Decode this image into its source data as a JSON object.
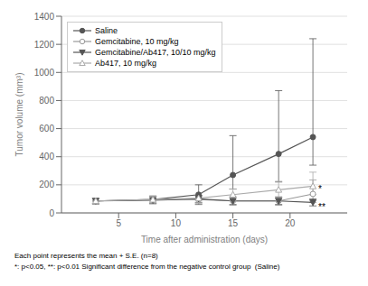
{
  "chart_data": {
    "type": "line",
    "xlabel": "Time after administration (days)",
    "ylabel": "Tumor volume (mm³)",
    "x": [
      3,
      8,
      12,
      15,
      19,
      22
    ],
    "series": [
      {
        "name": "Saline",
        "color": "#555555",
        "marker": "circle",
        "values": [
          85,
          95,
          130,
          270,
          420,
          540
        ],
        "err_lo": [
          20,
          25,
          70,
          100,
          200,
          200
        ],
        "err_hi": [
          20,
          25,
          70,
          280,
          450,
          700
        ]
      },
      {
        "name": "Gemcitabine, 10 mg/kg",
        "color": "#999999",
        "marker": "open_circle",
        "values": [
          85,
          95,
          95,
          85,
          85,
          135
        ],
        "err_lo": [
          20,
          25,
          30,
          30,
          30,
          60
        ],
        "err_hi": [
          20,
          25,
          30,
          30,
          30,
          100
        ]
      },
      {
        "name": "Gemcitabine/Ab417, 10/10 mg/kg",
        "color": "#555555",
        "marker": "triangle_down",
        "values": [
          85,
          90,
          100,
          85,
          85,
          75
        ],
        "err_lo": [
          20,
          25,
          25,
          25,
          25,
          25
        ],
        "err_hi": [
          20,
          25,
          25,
          25,
          25,
          25
        ]
      },
      {
        "name": "Ab417, 10 mg/kg",
        "color": "#aaaaaa",
        "marker": "open_triangle_up",
        "values": [
          85,
          95,
          105,
          130,
          165,
          190
        ],
        "err_lo": [
          20,
          25,
          35,
          40,
          60,
          60
        ],
        "err_hi": [
          20,
          25,
          35,
          40,
          60,
          100
        ]
      }
    ],
    "xlim": [
      0,
      25
    ],
    "xticks": [
      5,
      10,
      15,
      20
    ],
    "ylim": [
      0,
      1400
    ],
    "yticks": [
      0,
      200,
      400,
      600,
      800,
      1000,
      1200,
      1400
    ],
    "grid": true,
    "legend": "upper left",
    "annotations": [
      {
        "text": "*",
        "x": 22,
        "y": 135
      },
      {
        "text": "**",
        "x": 22,
        "y": 75
      }
    ],
    "footnotes": [
      "Each point represents the mean + S.E. (n=8)",
      "*: p<0.05, **: p<0.01 Significant difference from the negative control group  (Saline)"
    ]
  }
}
